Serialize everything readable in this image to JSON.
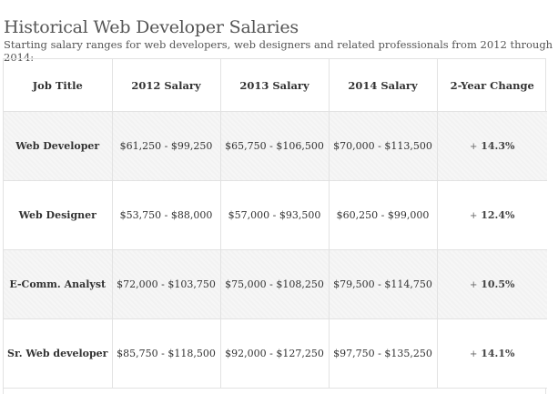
{
  "page": {
    "title": "Historical Web Developer Salaries",
    "subtitle": "Starting salary ranges for web developers, web designers and related professionals from 2012 through 2014:"
  },
  "table": {
    "headers": [
      "Job Title",
      "2012 Salary",
      "2013 Salary",
      "2014 Salary",
      "2-Year Change"
    ],
    "rows": [
      {
        "job": "Web Developer",
        "s2012": "$61,250 - $99,250",
        "s2013": "$65,750 - $106,500",
        "s2014": "$70,000 - $113,500",
        "change_sign": "+",
        "change": "14.3%"
      },
      {
        "job": "Web Designer",
        "s2012": "$53,750 - $88,000",
        "s2013": "$57,000 - $93,500",
        "s2014": "$60,250 - $99,000",
        "change_sign": "+",
        "change": "12.4%"
      },
      {
        "job": "E-Comm. Analyst",
        "s2012": "$72,000 - $103,750",
        "s2013": "$75,000 - $108,250",
        "s2014": "$79,500 - $114,750",
        "change_sign": "+",
        "change": "10.5%"
      },
      {
        "job": "Sr. Web developer",
        "s2012": "$85,750 - $118,500",
        "s2013": "$92,000 - $127,250",
        "s2014": "$97,750 - $135,250",
        "change_sign": "+",
        "change": "14.1%"
      }
    ]
  }
}
